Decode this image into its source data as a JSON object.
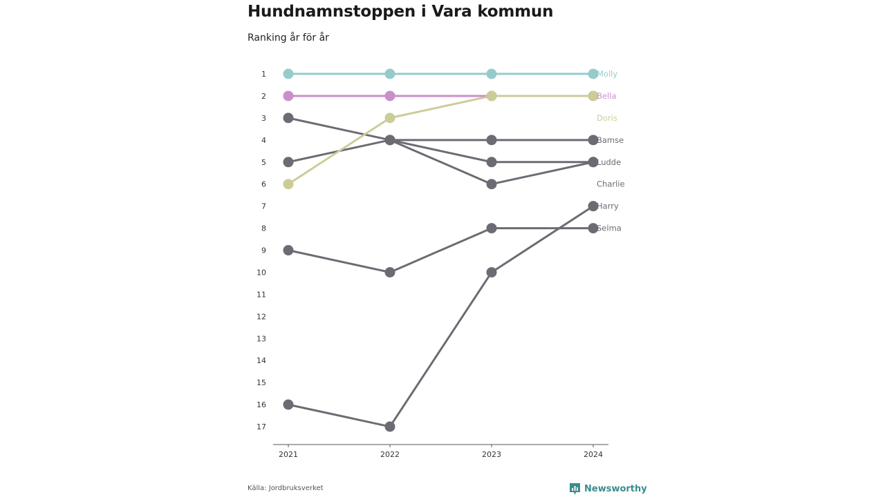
{
  "title": "Hundnamnstoppen i Vara kommun",
  "subtitle": "Ranking år för år",
  "source": "Källa: Jordbruksverket",
  "brand": "Newsworthy",
  "colors": {
    "Molly": "#96cbcb",
    "Bella": "#c98fc9",
    "Doris": "#cccc99",
    "other": "#6c6b73",
    "brand": "#3a8c8c"
  },
  "chart_data": {
    "type": "line",
    "x": [
      "2021",
      "2022",
      "2023",
      "2024"
    ],
    "y_ticks": [
      1,
      2,
      3,
      4,
      5,
      6,
      7,
      8,
      9,
      10,
      11,
      12,
      13,
      14,
      15,
      16,
      17
    ],
    "ylim": [
      1,
      17
    ],
    "y_reversed": true,
    "series": [
      {
        "name": "Molly",
        "values": [
          1,
          1,
          1,
          1
        ]
      },
      {
        "name": "Bella",
        "values": [
          2,
          2,
          2,
          2
        ]
      },
      {
        "name": "Doris",
        "values": [
          6,
          3,
          2,
          2
        ]
      },
      {
        "name": "Bamse",
        "values": [
          5,
          4,
          4,
          4
        ]
      },
      {
        "name": "Ludde",
        "values": [
          3,
          4,
          5,
          5
        ]
      },
      {
        "name": "Charlie",
        "values": [
          16,
          17,
          10,
          7
        ]
      },
      {
        "name": "Harry",
        "values": [
          9,
          10,
          8,
          8
        ]
      },
      {
        "name": "Selma",
        "values": [
          null,
          4,
          6,
          5
        ]
      }
    ],
    "end_labels": [
      {
        "name": "Molly",
        "rank": 1
      },
      {
        "name": "Bella",
        "rank": 2
      },
      {
        "name": "Doris",
        "rank": 3
      },
      {
        "name": "Bamse",
        "rank": 4
      },
      {
        "name": "Ludde",
        "rank": 5
      },
      {
        "name": "Charlie",
        "rank": 6
      },
      {
        "name": "Harry",
        "rank": 7
      },
      {
        "name": "Selma",
        "rank": 8
      }
    ]
  }
}
